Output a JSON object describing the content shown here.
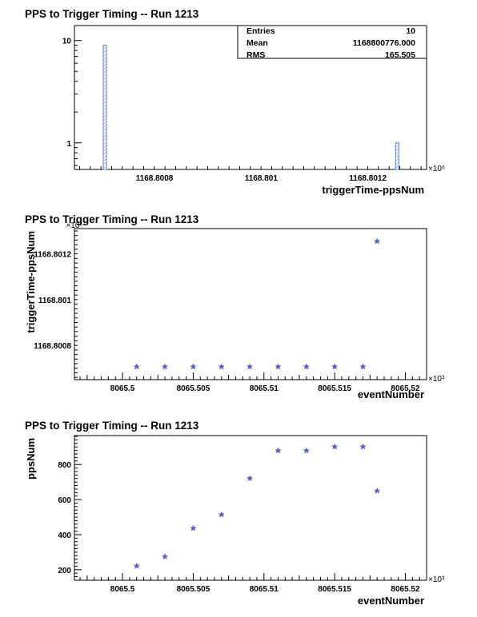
{
  "chart_data": [
    {
      "type": "bar",
      "subtype": "histogram",
      "title": "PPS to Trigger Timing -- Run 1213",
      "xlabel": "triggerTime-ppsNum",
      "ylabel": "",
      "x_multiplier": "×10⁶",
      "log_y": true,
      "xlim": [
        1168.80065,
        1168.80131
      ],
      "ylim": [
        0.55,
        14
      ],
      "grid": false,
      "x_ticks": [
        1168.8008,
        1168.801,
        1168.8012
      ],
      "x_tick_labels": [
        "1168.8008",
        "1168.801",
        "1168.8012"
      ],
      "y_tick_labels": [
        "1",
        "10"
      ],
      "bins": [
        {
          "x": 1168.800707,
          "value": 9
        },
        {
          "x": 1168.801255,
          "value": 1
        }
      ],
      "bar_color": "#7b90cf",
      "stats": {
        "entries_label": "Entries",
        "entries": "10",
        "mean_label": "Mean",
        "mean": "1168800776.000",
        "rms_label": "RMS",
        "rms": "165.505"
      }
    },
    {
      "type": "scatter",
      "title": "PPS to Trigger Timing -- Run 1213",
      "xlabel": "eventNumber",
      "ylabel": "triggerTime-ppsNum",
      "x_multiplier": "×10³",
      "y_multiplier": "×10⁶",
      "xlim": [
        8065.4966,
        8065.5215
      ],
      "ylim": [
        1168.80065,
        1168.80131
      ],
      "grid": false,
      "x_ticks": [
        8065.5,
        8065.505,
        8065.51,
        8065.515,
        8065.52
      ],
      "x_tick_labels": [
        "8065.5",
        "8065.505",
        "8065.51",
        "8065.515",
        "8065.52"
      ],
      "y_ticks": [
        1168.8008,
        1168.801,
        1168.8012
      ],
      "y_tick_labels": [
        "1168.8008",
        "1168.801",
        "1168.8012"
      ],
      "marker_color": "#5a5acf",
      "x": [
        8065.501,
        8065.503,
        8065.505,
        8065.507,
        8065.509,
        8065.511,
        8065.513,
        8065.515,
        8065.517,
        8065.518
      ],
      "y": [
        1168.800707,
        1168.800707,
        1168.800707,
        1168.800707,
        1168.800707,
        1168.800707,
        1168.800707,
        1168.800707,
        1168.800707,
        1168.801255
      ]
    },
    {
      "type": "scatter",
      "title": "PPS to Trigger Timing -- Run 1213",
      "xlabel": "eventNumber",
      "ylabel": "ppsNum",
      "x_multiplier": "×10³",
      "xlim": [
        8065.4966,
        8065.5215
      ],
      "ylim": [
        140,
        965
      ],
      "grid": false,
      "x_ticks": [
        8065.5,
        8065.505,
        8065.51,
        8065.515,
        8065.52
      ],
      "x_tick_labels": [
        "8065.5",
        "8065.505",
        "8065.51",
        "8065.515",
        "8065.52"
      ],
      "y_ticks": [
        200,
        400,
        600,
        800
      ],
      "y_tick_labels": [
        "200",
        "400",
        "600",
        "800"
      ],
      "marker_color": "#5a5acf",
      "x": [
        8065.501,
        8065.503,
        8065.505,
        8065.507,
        8065.509,
        8065.511,
        8065.513,
        8065.515,
        8065.517,
        8065.518
      ],
      "y": [
        222,
        275,
        437,
        515,
        722,
        880,
        880,
        902,
        902,
        650
      ]
    }
  ]
}
